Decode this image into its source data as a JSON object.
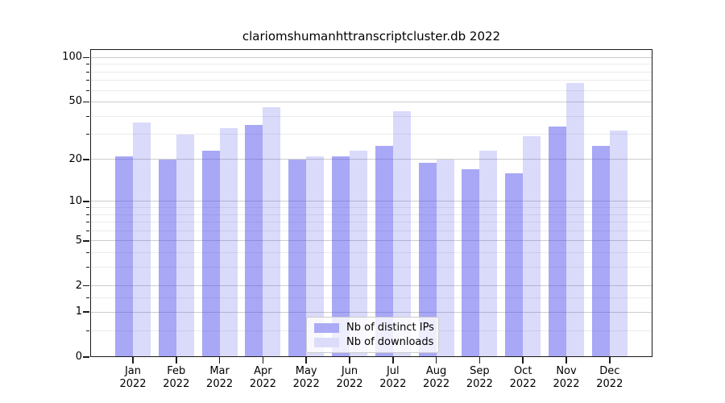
{
  "title": "clariomshumanhttranscriptcluster.db 2022",
  "chart_data": {
    "type": "bar",
    "title": "clariomshumanhttranscriptcluster.db 2022",
    "scale": "log10(1+y)",
    "x_categories": [
      "Jan",
      "Feb",
      "Mar",
      "Apr",
      "May",
      "Jun",
      "Jul",
      "Aug",
      "Sep",
      "Oct",
      "Nov",
      "Dec"
    ],
    "x_year": "2022",
    "series": [
      {
        "name": "Nb of distinct IPs",
        "values": [
          21,
          20,
          23,
          35,
          20,
          21,
          25,
          19,
          17,
          16,
          34,
          25
        ]
      },
      {
        "name": "Nb of downloads",
        "values": [
          36,
          30,
          33,
          46,
          21,
          23,
          43,
          20,
          23,
          29,
          67,
          32
        ]
      }
    ],
    "y_ticks": [
      0,
      1,
      2,
      5,
      10,
      20,
      50,
      100
    ],
    "y_minor_gridlines": [
      0.5,
      1.5,
      3,
      4,
      6,
      7,
      8,
      9,
      30,
      40,
      60,
      70,
      80,
      90
    ],
    "ylim": [
      0,
      114
    ],
    "grid": true,
    "legend_position": "lower center"
  },
  "colors": {
    "bar_distinct_ips": "rgba(70,70,235,0.47)",
    "bar_downloads": "rgba(70,70,235,0.20)",
    "legend_swatch_ips": "#aaaaf5",
    "legend_swatch_downloads": "#dcdcfa",
    "grid_major": "#cdcdcd",
    "grid_minor": "#ebebeb",
    "axis": "#1a1a1a"
  }
}
